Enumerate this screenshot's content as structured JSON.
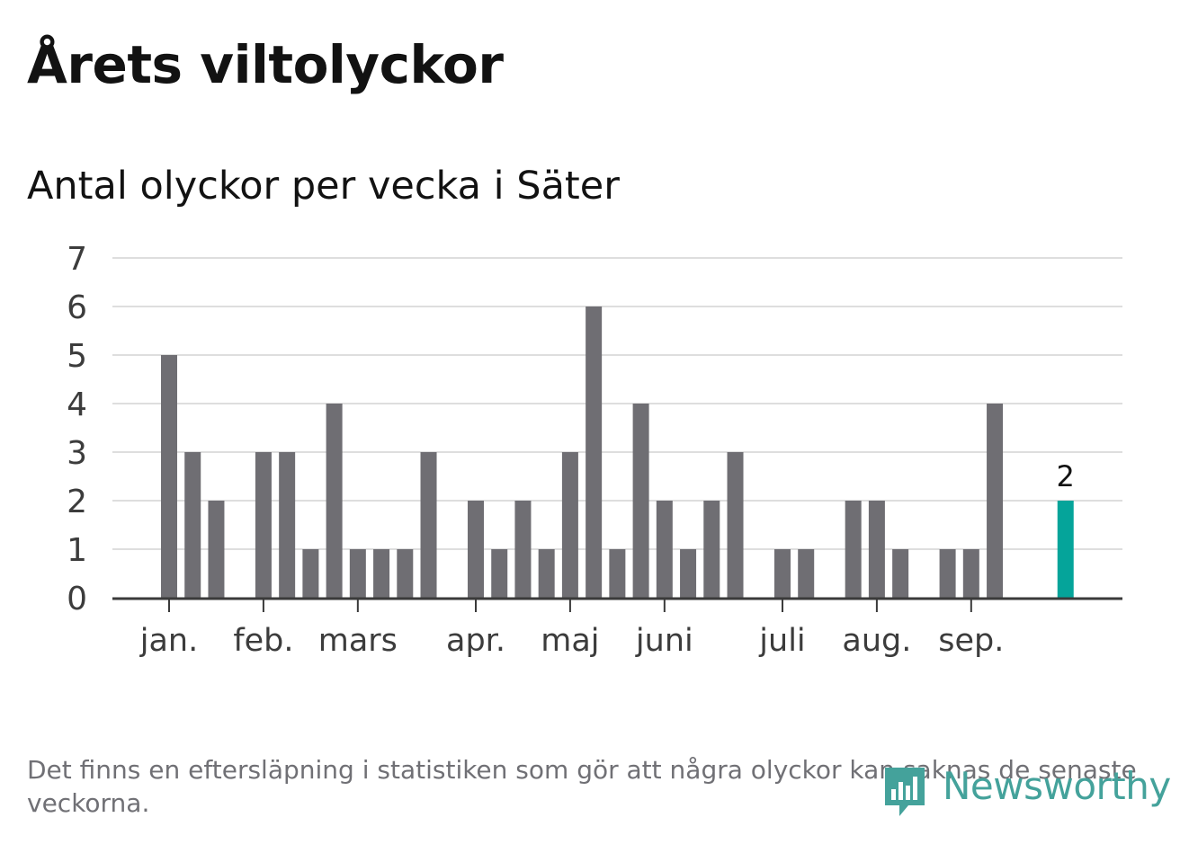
{
  "title": "Årets viltolyckor",
  "subtitle": "Antal olyckor per vecka i Säter",
  "footnote": "Det finns en eftersläpning i statistiken som gör att några olyckor kan saknas de senaste veckorna.",
  "brand": {
    "name": "Newsworthy",
    "color": "#44a29b",
    "icon": "bar-chart-speech-bubble-icon"
  },
  "chart_data": {
    "type": "bar",
    "title": "Antal olyckor per vecka i Säter",
    "xlabel": "",
    "ylabel": "",
    "ylim": [
      0,
      7
    ],
    "yticks": [
      "0",
      "1",
      "2",
      "3",
      "4",
      "5",
      "6",
      "7"
    ],
    "grid": true,
    "bar_color": "#6f6e73",
    "highlight_color": "#05a49a",
    "highlight_index": 38,
    "highlight_label": "2",
    "week_offset": 1,
    "values": [
      5,
      3,
      2,
      0,
      3,
      3,
      1,
      4,
      1,
      1,
      1,
      3,
      0,
      2,
      1,
      2,
      1,
      3,
      6,
      1,
      4,
      2,
      1,
      2,
      3,
      0,
      1,
      1,
      0,
      2,
      2,
      1,
      0,
      1,
      1,
      4,
      0,
      0,
      2
    ],
    "month_ticks": [
      {
        "label": "jan.",
        "pos": 0
      },
      {
        "label": "feb.",
        "pos": 4
      },
      {
        "label": "mars",
        "pos": 8
      },
      {
        "label": "apr.",
        "pos": 13
      },
      {
        "label": "maj",
        "pos": 17
      },
      {
        "label": "juni",
        "pos": 21
      },
      {
        "label": "juli",
        "pos": 26
      },
      {
        "label": "aug.",
        "pos": 30
      },
      {
        "label": "sep.",
        "pos": 34
      }
    ]
  }
}
